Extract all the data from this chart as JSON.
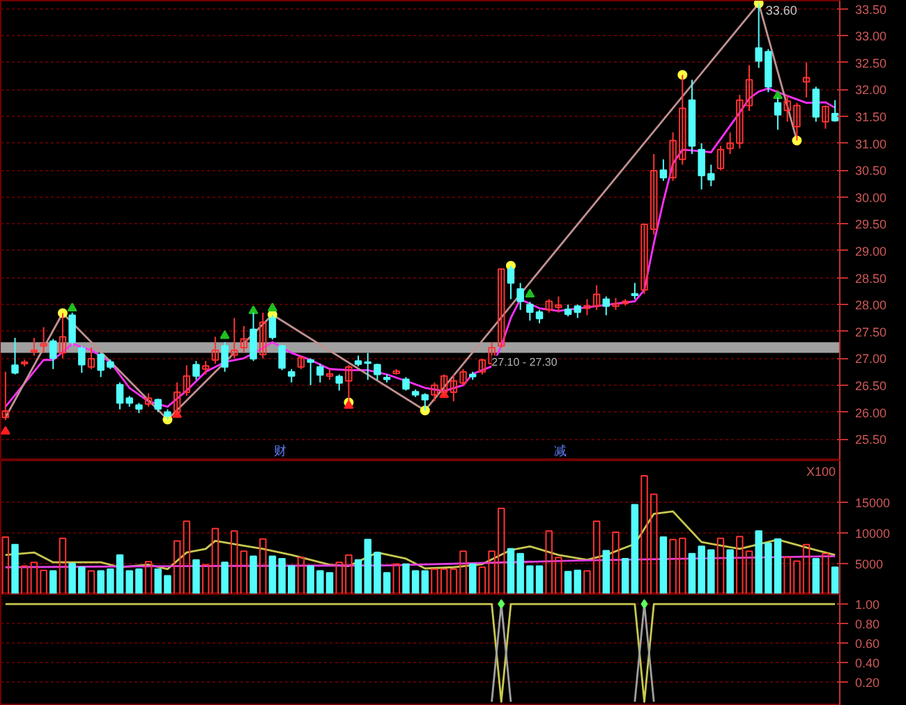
{
  "chart_data": [
    {
      "type": "candlestick",
      "categories": [
        null,
        null,
        null,
        null,
        null,
        null,
        null,
        null,
        null,
        null,
        null,
        null,
        null,
        null,
        null,
        null,
        null,
        null,
        null,
        null,
        null,
        null,
        null,
        null,
        null,
        null,
        null,
        null,
        null,
        null,
        null,
        null,
        null,
        null,
        null,
        null,
        null,
        null,
        null,
        null,
        null,
        null,
        null,
        null,
        null,
        null,
        null,
        null,
        null,
        null,
        null,
        null,
        null,
        null,
        null,
        null,
        null,
        null,
        null,
        null,
        null,
        null,
        null,
        null,
        null,
        null,
        null,
        null,
        null,
        null,
        null,
        null,
        null,
        null,
        null,
        null,
        null,
        null,
        null,
        null,
        null,
        null,
        null,
        null,
        null,
        null,
        null,
        null
      ],
      "ohlc": [
        [
          25.9,
          26.75,
          25.85,
          26.02
        ],
        [
          26.87,
          27.38,
          26.7,
          26.73
        ],
        [
          26.9,
          26.97,
          26.85,
          26.93
        ],
        [
          27.12,
          27.38,
          27.05,
          27.15
        ],
        [
          27.23,
          27.58,
          27.1,
          27.27
        ],
        [
          27.32,
          27.36,
          26.8,
          27.0
        ],
        [
          27.1,
          27.84,
          27.0,
          27.4
        ],
        [
          27.8,
          27.85,
          27.25,
          27.3
        ],
        [
          27.19,
          27.23,
          26.73,
          26.88
        ],
        [
          26.84,
          27.2,
          26.8,
          26.99
        ],
        [
          27.07,
          27.1,
          26.65,
          26.78
        ],
        [
          26.93,
          26.98,
          26.8,
          26.84
        ],
        [
          26.51,
          26.55,
          26.05,
          26.17
        ],
        [
          26.26,
          26.3,
          26.1,
          26.17
        ],
        [
          26.13,
          26.17,
          25.98,
          26.06
        ],
        [
          26.15,
          26.35,
          26.1,
          26.26
        ],
        [
          26.23,
          26.25,
          26.0,
          26.06
        ],
        [
          26.0,
          26.05,
          25.86,
          25.93
        ],
        [
          26.0,
          26.55,
          25.95,
          26.37
        ],
        [
          26.37,
          26.87,
          26.3,
          26.67
        ],
        [
          26.88,
          26.95,
          26.6,
          26.67
        ],
        [
          26.8,
          26.95,
          26.7,
          26.86
        ],
        [
          26.97,
          27.4,
          26.9,
          27.15
        ],
        [
          27.23,
          27.3,
          26.75,
          26.84
        ],
        [
          27.06,
          27.75,
          27.0,
          27.15
        ],
        [
          27.2,
          27.6,
          27.1,
          27.36
        ],
        [
          27.54,
          27.85,
          26.95,
          26.99
        ],
        [
          27.07,
          27.85,
          27.0,
          27.67
        ],
        [
          27.75,
          27.81,
          27.35,
          27.39
        ],
        [
          27.23,
          27.25,
          26.78,
          26.82
        ],
        [
          26.75,
          26.8,
          26.55,
          26.67
        ],
        [
          26.84,
          27.05,
          26.8,
          27.01
        ],
        [
          26.97,
          27.0,
          26.5,
          26.93
        ],
        [
          26.84,
          26.9,
          26.55,
          26.69
        ],
        [
          26.67,
          26.8,
          26.6,
          26.71
        ],
        [
          26.66,
          26.7,
          26.4,
          26.54
        ],
        [
          26.58,
          26.88,
          26.18,
          26.84
        ],
        [
          26.95,
          27.05,
          26.85,
          26.89
        ],
        [
          26.93,
          27.1,
          26.6,
          26.91
        ],
        [
          26.88,
          26.9,
          26.6,
          26.7
        ],
        [
          26.64,
          26.7,
          26.55,
          26.61
        ],
        [
          26.72,
          26.8,
          26.7,
          26.76
        ],
        [
          26.61,
          26.65,
          26.4,
          26.43
        ],
        [
          26.38,
          26.42,
          26.28,
          26.32
        ],
        [
          26.32,
          26.35,
          26.03,
          26.23
        ],
        [
          26.32,
          26.55,
          26.2,
          26.5
        ],
        [
          26.37,
          26.7,
          26.3,
          26.67
        ],
        [
          26.37,
          26.7,
          26.2,
          26.58
        ],
        [
          26.54,
          26.8,
          26.5,
          26.75
        ],
        [
          26.7,
          26.75,
          26.6,
          26.66
        ],
        [
          26.75,
          26.99,
          26.7,
          26.97
        ],
        [
          26.9,
          27.3,
          26.85,
          27.2
        ],
        [
          27.23,
          28.66,
          27.2,
          28.66
        ],
        [
          28.66,
          28.72,
          28.1,
          28.4
        ],
        [
          28.29,
          28.4,
          27.9,
          28.06
        ],
        [
          28.0,
          28.05,
          27.7,
          27.86
        ],
        [
          27.86,
          27.9,
          27.65,
          27.74
        ],
        [
          27.9,
          28.1,
          27.85,
          28.06
        ],
        [
          27.95,
          28.15,
          27.85,
          27.99
        ],
        [
          27.91,
          28.0,
          27.78,
          27.82
        ],
        [
          27.97,
          28.0,
          27.75,
          27.86
        ],
        [
          27.93,
          28.1,
          27.8,
          27.98
        ],
        [
          27.97,
          28.36,
          27.9,
          28.19
        ],
        [
          28.1,
          28.15,
          27.8,
          27.97
        ],
        [
          27.97,
          28.12,
          27.9,
          28.01
        ],
        [
          28.02,
          28.1,
          27.98,
          28.06
        ],
        [
          28.2,
          28.4,
          28.1,
          28.17
        ],
        [
          28.27,
          29.5,
          28.2,
          29.49
        ],
        [
          29.4,
          30.8,
          29.3,
          30.49
        ],
        [
          30.5,
          30.7,
          30.3,
          30.36
        ],
        [
          30.36,
          31.2,
          30.3,
          31.05
        ],
        [
          30.7,
          32.27,
          30.6,
          31.65
        ],
        [
          31.8,
          32.18,
          30.8,
          30.95
        ],
        [
          30.88,
          31.0,
          30.14,
          30.4
        ],
        [
          30.43,
          30.6,
          30.2,
          30.32
        ],
        [
          30.53,
          30.95,
          30.5,
          30.88
        ],
        [
          30.9,
          31.2,
          30.8,
          31.0
        ],
        [
          31.0,
          31.9,
          30.9,
          31.8
        ],
        [
          31.7,
          32.45,
          31.6,
          32.18
        ],
        [
          32.77,
          33.6,
          32.4,
          32.53
        ],
        [
          32.7,
          32.75,
          31.95,
          32.05
        ],
        [
          31.75,
          31.85,
          31.25,
          31.53
        ],
        [
          31.61,
          31.9,
          31.4,
          31.78
        ],
        [
          31.31,
          31.75,
          31.05,
          31.7
        ],
        [
          32.14,
          32.5,
          31.85,
          32.22
        ],
        [
          32.0,
          32.05,
          31.4,
          31.49
        ],
        [
          31.4,
          31.7,
          31.27,
          31.68
        ],
        [
          31.55,
          31.8,
          31.4,
          31.42
        ]
      ],
      "colors": [
        "#ff3232",
        "#54fcfc",
        "#ff3232",
        "#ff3232",
        "#ff3232",
        "#54fcfc",
        "#ff3232",
        "#54fcfc",
        "#54fcfc",
        "#ff3232",
        "#54fcfc",
        "#54fcfc",
        "#54fcfc",
        "#54fcfc",
        "#54fcfc",
        "#ff3232",
        "#54fcfc",
        "#54fcfc",
        "#ff3232",
        "#ff3232",
        "#54fcfc",
        "#ff3232",
        "#ff3232",
        "#54fcfc",
        "#ff3232",
        "#ff3232",
        "#54fcfc",
        "#ff3232",
        "#54fcfc",
        "#54fcfc",
        "#54fcfc",
        "#ff3232",
        "#54fcfc",
        "#54fcfc",
        "#ff3232",
        "#54fcfc",
        "#ff3232",
        "#54fcfc",
        "#54fcfc",
        "#54fcfc",
        "#54fcfc",
        "#ff3232",
        "#54fcfc",
        "#54fcfc",
        "#54fcfc",
        "#ff3232",
        "#ff3232",
        "#ff3232",
        "#ff3232",
        "#54fcfc",
        "#ff3232",
        "#ff3232",
        "#ff3232",
        "#54fcfc",
        "#54fcfc",
        "#54fcfc",
        "#54fcfc",
        "#ff3232",
        "#ff3232",
        "#54fcfc",
        "#54fcfc",
        "#ff3232",
        "#ff3232",
        "#54fcfc",
        "#ff3232",
        "#ff3232",
        "#54fcfc",
        "#ff3232",
        "#ff3232",
        "#54fcfc",
        "#ff3232",
        "#ff3232",
        "#54fcfc",
        "#54fcfc",
        "#54fcfc",
        "#ff3232",
        "#ff3232",
        "#ff3232",
        "#ff3232",
        "#54fcfc",
        "#54fcfc",
        "#54fcfc",
        "#ff3232",
        "#ff3232",
        "#ff3232",
        "#54fcfc",
        "#ff3232",
        "#54fcfc"
      ],
      "series": [
        {
          "type": "line",
          "color": "#ff30ff",
          "values": [
            26.1,
            null,
            null,
            null,
            26.97,
            26.97,
            null,
            27.27,
            null,
            27.15,
            null,
            26.93,
            null,
            26.45,
            null,
            26.2,
            null,
            26.1,
            null,
            26.4,
            null,
            26.75,
            null,
            26.93,
            null,
            27.0,
            null,
            27.19,
            27.3,
            null,
            27.1,
            null,
            26.97,
            null,
            26.8,
            null,
            26.78,
            null,
            26.78,
            null,
            26.7,
            null,
            26.58,
            null,
            26.45,
            null,
            26.39,
            null,
            26.5,
            26.71,
            null,
            26.85,
            27.23,
            27.75,
            28.1,
            null,
            27.93,
            null,
            27.88,
            null,
            null,
            null,
            27.97,
            null,
            null,
            null,
            28.06,
            28.27,
            29.14,
            29.92,
            30.62,
            30.88,
            null,
            30.85,
            30.83,
            null,
            null,
            31.57,
            31.83,
            31.96,
            32.02,
            null,
            31.88,
            null,
            31.75,
            null,
            31.76,
            31.66
          ]
        },
        {
          "type": "line",
          "color": "#c09090",
          "values": [
            25.9,
            null,
            null,
            null,
            null,
            null,
            27.84,
            null,
            null,
            null,
            null,
            null,
            null,
            null,
            null,
            null,
            null,
            25.86,
            null,
            null,
            null,
            null,
            null,
            null,
            null,
            null,
            null,
            null,
            27.81,
            null,
            null,
            null,
            null,
            null,
            null,
            null,
            null,
            null,
            null,
            null,
            null,
            null,
            null,
            null,
            26.03,
            null,
            null,
            null,
            null,
            null,
            null,
            null,
            null,
            null,
            null,
            null,
            null,
            null,
            null,
            null,
            null,
            null,
            null,
            null,
            null,
            null,
            null,
            null,
            null,
            null,
            null,
            null,
            null,
            null,
            null,
            null,
            null,
            null,
            null,
            33.6,
            null,
            null,
            null,
            31.05,
            null,
            null,
            null,
            null
          ]
        },
        {
          "type": "scatter",
          "color": "#ffff40",
          "marker": "circle",
          "values": [
            null,
            null,
            null,
            null,
            null,
            null,
            27.84,
            null,
            null,
            null,
            null,
            null,
            null,
            null,
            null,
            null,
            null,
            25.86,
            null,
            null,
            null,
            null,
            null,
            null,
            null,
            null,
            null,
            null,
            27.81,
            null,
            null,
            null,
            null,
            null,
            null,
            null,
            26.18,
            null,
            null,
            null,
            null,
            null,
            null,
            null,
            26.03,
            null,
            null,
            null,
            null,
            null,
            null,
            null,
            null,
            28.72,
            null,
            null,
            null,
            null,
            null,
            null,
            null,
            null,
            null,
            null,
            null,
            null,
            null,
            null,
            null,
            null,
            null,
            32.27,
            null,
            null,
            null,
            null,
            null,
            null,
            null,
            33.6,
            null,
            null,
            null,
            31.05,
            null,
            null,
            null,
            null
          ]
        },
        {
          "type": "scatter",
          "color": "#20c020",
          "marker": "triangle",
          "values": [
            null,
            null,
            null,
            null,
            null,
            null,
            null,
            27.93,
            null,
            null,
            null,
            null,
            null,
            null,
            null,
            null,
            null,
            null,
            null,
            null,
            null,
            null,
            null,
            27.42,
            null,
            null,
            27.88,
            null,
            27.93,
            null,
            null,
            null,
            null,
            null,
            null,
            null,
            null,
            null,
            null,
            null,
            null,
            null,
            null,
            null,
            null,
            null,
            null,
            null,
            null,
            null,
            null,
            null,
            null,
            null,
            null,
            28.19,
            null,
            null,
            null,
            null,
            null,
            null,
            null,
            null,
            null,
            null,
            null,
            null,
            null,
            null,
            null,
            null,
            null,
            null,
            null,
            null,
            null,
            null,
            null,
            null,
            null,
            31.88,
            null,
            null,
            null,
            null,
            null,
            null
          ]
        },
        {
          "type": "scatter",
          "color": "#ff2020",
          "marker": "triangle",
          "values": [
            25.64,
            null,
            null,
            null,
            null,
            null,
            null,
            null,
            null,
            null,
            null,
            null,
            null,
            null,
            null,
            null,
            null,
            null,
            25.95,
            null,
            null,
            null,
            null,
            null,
            null,
            null,
            null,
            null,
            null,
            null,
            null,
            null,
            null,
            null,
            null,
            null,
            26.12,
            null,
            null,
            null,
            null,
            null,
            null,
            null,
            null,
            null,
            26.32,
            null,
            null,
            null,
            null,
            null,
            null,
            null,
            null,
            null,
            null,
            null,
            null,
            null,
            null,
            null,
            null,
            null,
            null,
            null,
            null,
            null,
            null,
            null,
            null,
            null,
            null,
            null,
            null,
            null,
            null,
            null,
            null,
            null,
            null,
            null,
            null,
            null,
            null,
            null,
            null,
            null
          ]
        }
      ],
      "bands": [
        {
          "axis": "y",
          "from": 27.1,
          "to": 27.3,
          "label": "27.10 - 27.30",
          "color": "#a0a0a0"
        }
      ],
      "annotations": [
        "33.60",
        "财",
        "减"
      ],
      "ylim": [
        25.1,
        33.65
      ],
      "yticks": [
        {
          "value": 25.5,
          "label": "25.50"
        },
        {
          "value": 26,
          "label": "26.00"
        },
        {
          "value": 26.5,
          "label": "26.50"
        },
        {
          "value": 27,
          "label": "27.00"
        },
        {
          "value": 27.5,
          "label": "27.50"
        },
        {
          "value": 28,
          "label": "28.00"
        },
        {
          "value": 28.5,
          "label": "28.50"
        },
        {
          "value": 29,
          "label": "29.00"
        },
        {
          "value": 29.5,
          "label": "29.50"
        },
        {
          "value": 30,
          "label": "30.00"
        },
        {
          "value": 30.5,
          "label": "30.50"
        },
        {
          "value": 31,
          "label": "31.00"
        },
        {
          "value": 31.5,
          "label": "31.50"
        },
        {
          "value": 32,
          "label": "32.00"
        },
        {
          "value": 32.5,
          "label": "32.50"
        },
        {
          "value": 33,
          "label": "33.00"
        },
        {
          "value": 33.5,
          "label": "33.50"
        }
      ],
      "grid": "y",
      "tick_labels": "y"
    },
    {
      "type": "bar",
      "categories": [
        null,
        null,
        null,
        null,
        null,
        null,
        null,
        null,
        null,
        null,
        null,
        null,
        null,
        null,
        null,
        null,
        null,
        null,
        null,
        null,
        null,
        null,
        null,
        null,
        null,
        null,
        null,
        null,
        null,
        null,
        null,
        null,
        null,
        null,
        null,
        null,
        null,
        null,
        null,
        null,
        null,
        null,
        null,
        null,
        null,
        null,
        null,
        null,
        null,
        null,
        null,
        null,
        null,
        null,
        null,
        null,
        null,
        null,
        null,
        null,
        null,
        null,
        null,
        null,
        null,
        null,
        null,
        null,
        null,
        null,
        null,
        null,
        null,
        null,
        null,
        null,
        null,
        null,
        null,
        null,
        null,
        null,
        null,
        null,
        null,
        null,
        null,
        null
      ],
      "values": [
        9300,
        8100,
        4600,
        5200,
        3900,
        3800,
        9100,
        5000,
        4400,
        3800,
        3800,
        4100,
        6400,
        3800,
        4100,
        5300,
        4100,
        3000,
        8700,
        11900,
        5600,
        4800,
        10700,
        5200,
        10300,
        7000,
        6200,
        9000,
        6200,
        5800,
        4600,
        6000,
        4600,
        3800,
        3500,
        5200,
        6400,
        5600,
        8900,
        6800,
        3500,
        4900,
        4900,
        3800,
        3800,
        4100,
        4100,
        4100,
        7000,
        4900,
        4400,
        7000,
        14000,
        7400,
        6600,
        4600,
        4600,
        10300,
        6000,
        3700,
        3900,
        3800,
        11900,
        7100,
        10100,
        5800,
        14600,
        19300,
        16300,
        9300,
        8900,
        9100,
        6600,
        7800,
        7200,
        9100,
        7200,
        9400,
        7000,
        10300,
        8300,
        9000,
        6000,
        5400,
        8100,
        5800,
        6600,
        4400
      ],
      "colors": [
        "#ff3232",
        "#54fcfc",
        "#ff3232",
        "#ff3232",
        "#ff3232",
        "#54fcfc",
        "#ff3232",
        "#54fcfc",
        "#54fcfc",
        "#ff3232",
        "#54fcfc",
        "#54fcfc",
        "#54fcfc",
        "#54fcfc",
        "#54fcfc",
        "#ff3232",
        "#54fcfc",
        "#54fcfc",
        "#ff3232",
        "#ff3232",
        "#54fcfc",
        "#ff3232",
        "#ff3232",
        "#54fcfc",
        "#ff3232",
        "#ff3232",
        "#54fcfc",
        "#ff3232",
        "#54fcfc",
        "#54fcfc",
        "#54fcfc",
        "#ff3232",
        "#54fcfc",
        "#54fcfc",
        "#54fcfc",
        "#ff3232",
        "#ff3232",
        "#54fcfc",
        "#54fcfc",
        "#54fcfc",
        "#54fcfc",
        "#ff3232",
        "#54fcfc",
        "#54fcfc",
        "#54fcfc",
        "#ff3232",
        "#ff3232",
        "#ff3232",
        "#ff3232",
        "#54fcfc",
        "#ff3232",
        "#ff3232",
        "#ff3232",
        "#54fcfc",
        "#54fcfc",
        "#54fcfc",
        "#54fcfc",
        "#ff3232",
        "#ff3232",
        "#54fcfc",
        "#54fcfc",
        "#ff3232",
        "#ff3232",
        "#54fcfc",
        "#ff3232",
        "#54fcfc",
        "#54fcfc",
        "#ff3232",
        "#ff3232",
        "#54fcfc",
        "#ff3232",
        "#ff3232",
        "#54fcfc",
        "#54fcfc",
        "#54fcfc",
        "#ff3232",
        "#54fcfc",
        "#ff3232",
        "#ff3232",
        "#54fcfc",
        "#54fcfc",
        "#54fcfc",
        "#ff3232",
        "#ff3232",
        "#ff3232",
        "#54fcfc",
        "#ff3232",
        "#54fcfc"
      ],
      "series": [
        {
          "type": "line",
          "color": "#c8c850",
          "values": [
            6400,
            null,
            null,
            6800,
            null,
            5200,
            null,
            null,
            null,
            null,
            5200,
            null,
            4400,
            null,
            null,
            4800,
            null,
            4100,
            null,
            6800,
            null,
            7400,
            8700,
            null,
            null,
            7900,
            null,
            7400,
            null,
            null,
            6400,
            null,
            null,
            null,
            4800,
            null,
            4600,
            null,
            null,
            6800,
            null,
            null,
            5800,
            null,
            4200,
            null,
            null,
            4400,
            null,
            null,
            4900,
            null,
            null,
            7200,
            null,
            7800,
            null,
            null,
            6400,
            null,
            null,
            5600,
            null,
            6400,
            null,
            null,
            8200,
            null,
            13100,
            null,
            13500,
            null,
            null,
            8500,
            null,
            null,
            null,
            7400,
            null,
            null,
            null,
            8900,
            null,
            null,
            null,
            7200,
            null,
            6400
          ]
        },
        {
          "type": "line",
          "color": "#e040e0",
          "values": [
            4400,
            null,
            null,
            null,
            null,
            null,
            null,
            null,
            null,
            null,
            null,
            null,
            null,
            null,
            null,
            null,
            null,
            null,
            null,
            null,
            4600,
            null,
            null,
            null,
            null,
            null,
            null,
            null,
            null,
            null,
            null,
            null,
            null,
            null,
            null,
            null,
            null,
            null,
            null,
            null,
            4700,
            null,
            null,
            null,
            null,
            null,
            null,
            null,
            null,
            null,
            null,
            null,
            null,
            null,
            null,
            null,
            null,
            null,
            null,
            null,
            5500,
            null,
            null,
            null,
            null,
            null,
            null,
            null,
            null,
            null,
            null,
            null,
            null,
            null,
            null,
            null,
            null,
            null,
            null,
            null,
            null,
            null,
            null,
            null,
            null,
            null,
            null,
            6200
          ]
        }
      ],
      "annotations": [
        "X100"
      ],
      "ylim": [
        0,
        21800
      ],
      "yticks": [
        5000,
        10000,
        15000
      ],
      "grid": "y",
      "tick_labels": "y"
    },
    {
      "type": "line",
      "categories": [
        null,
        null,
        null,
        null,
        null,
        null,
        null,
        null,
        null,
        null,
        null,
        null,
        null,
        null,
        null,
        null,
        null,
        null,
        null,
        null,
        null,
        null,
        null,
        null,
        null,
        null,
        null,
        null,
        null,
        null,
        null,
        null,
        null,
        null,
        null,
        null,
        null,
        null,
        null,
        null,
        null,
        null,
        null,
        null,
        null,
        null,
        null,
        null,
        null,
        null,
        null,
        null,
        null,
        null,
        null,
        null,
        null,
        null,
        null,
        null,
        null,
        null,
        null,
        null,
        null,
        null,
        null,
        null,
        null,
        null,
        null,
        null,
        null,
        null,
        null,
        null,
        null,
        null,
        null,
        null,
        null,
        null,
        null,
        null,
        null,
        null,
        null,
        null
      ],
      "series": [
        {
          "type": "line",
          "color": "#c8c850",
          "values": [
            1,
            1,
            1,
            1,
            1,
            1,
            1,
            1,
            1,
            1,
            1,
            1,
            1,
            1,
            1,
            1,
            1,
            1,
            1,
            1,
            1,
            1,
            1,
            1,
            1,
            1,
            1,
            1,
            1,
            1,
            1,
            1,
            1,
            1,
            1,
            1,
            1,
            1,
            1,
            1,
            1,
            1,
            1,
            1,
            1,
            1,
            1,
            1,
            1,
            1,
            1,
            1,
            0,
            1,
            1,
            1,
            1,
            1,
            1,
            1,
            1,
            1,
            1,
            1,
            1,
            1,
            1,
            0,
            1,
            1,
            1,
            1,
            1,
            1,
            1,
            1,
            1,
            1,
            1,
            1,
            1,
            1,
            1,
            1,
            1,
            1,
            1,
            1
          ]
        },
        {
          "type": "line",
          "color": "#a0a0a0",
          "values": [
            null,
            null,
            null,
            null,
            null,
            null,
            null,
            null,
            null,
            null,
            null,
            null,
            null,
            null,
            null,
            null,
            null,
            null,
            null,
            null,
            null,
            null,
            null,
            null,
            null,
            null,
            null,
            null,
            null,
            null,
            null,
            null,
            null,
            null,
            null,
            null,
            null,
            null,
            null,
            null,
            null,
            null,
            null,
            null,
            null,
            null,
            null,
            null,
            null,
            null,
            null,
            0,
            1,
            0,
            null,
            null,
            null,
            null,
            null,
            null,
            null,
            null,
            null,
            null,
            null,
            null,
            null,
            null,
            null,
            null,
            null,
            null,
            null,
            null,
            null,
            null,
            null,
            null,
            null,
            null,
            null,
            null,
            null,
            null,
            null,
            null,
            null,
            null
          ]
        },
        {
          "type": "line",
          "color": "#a0a0a0",
          "values": [
            null,
            null,
            null,
            null,
            null,
            null,
            null,
            null,
            null,
            null,
            null,
            null,
            null,
            null,
            null,
            null,
            null,
            null,
            null,
            null,
            null,
            null,
            null,
            null,
            null,
            null,
            null,
            null,
            null,
            null,
            null,
            null,
            null,
            null,
            null,
            null,
            null,
            null,
            null,
            null,
            null,
            null,
            null,
            null,
            null,
            null,
            null,
            null,
            null,
            null,
            null,
            null,
            null,
            null,
            null,
            null,
            null,
            null,
            null,
            null,
            null,
            null,
            null,
            null,
            null,
            null,
            0,
            1,
            0,
            null,
            null,
            null,
            null,
            null,
            null,
            null,
            null,
            null,
            null,
            null,
            null,
            null,
            null,
            null,
            null,
            null,
            null,
            null
          ]
        },
        {
          "type": "scatter",
          "color": "#60ff60",
          "marker": "diamond",
          "values": [
            null,
            null,
            null,
            null,
            null,
            null,
            null,
            null,
            null,
            null,
            null,
            null,
            null,
            null,
            null,
            null,
            null,
            null,
            null,
            null,
            null,
            null,
            null,
            null,
            null,
            null,
            null,
            null,
            null,
            null,
            null,
            null,
            null,
            null,
            null,
            null,
            null,
            null,
            null,
            null,
            null,
            null,
            null,
            null,
            null,
            null,
            null,
            null,
            null,
            null,
            null,
            null,
            1,
            null,
            null,
            null,
            null,
            null,
            null,
            null,
            null,
            null,
            null,
            null,
            null,
            null,
            null,
            1,
            null,
            null,
            null,
            null,
            null,
            null,
            null,
            null,
            null,
            null,
            null,
            null,
            null,
            null,
            null,
            null,
            null,
            null,
            null,
            null
          ]
        }
      ],
      "ylim": [
        -0.04,
        1.1
      ],
      "yticks": [
        {
          "value": 0.2,
          "label": "0.20"
        },
        {
          "value": 0.4,
          "label": "0.40"
        },
        {
          "value": 0.6,
          "label": "0.60"
        },
        {
          "value": 0.8,
          "label": "0.80"
        },
        {
          "value": 1,
          "label": "1.00"
        }
      ],
      "grid": "y",
      "tick_labels": "y"
    }
  ]
}
